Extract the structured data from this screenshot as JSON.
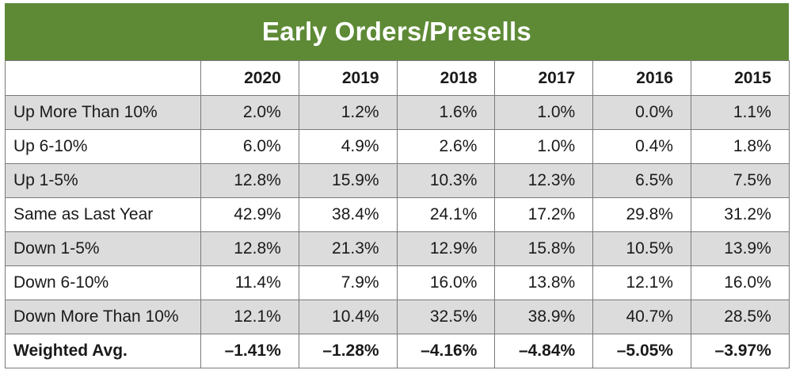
{
  "title": "Early Orders/Presells",
  "chart_data": {
    "type": "table",
    "title": "Early Orders/Presells",
    "columns": [
      "2020",
      "2019",
      "2018",
      "2017",
      "2016",
      "2015"
    ],
    "rows": [
      {
        "label": "Up More Than 10%",
        "values": [
          "2.0%",
          "1.2%",
          "1.6%",
          "1.0%",
          "0.0%",
          "1.1%"
        ]
      },
      {
        "label": "Up 6-10%",
        "values": [
          "6.0%",
          "4.9%",
          "2.6%",
          "1.0%",
          "0.4%",
          "1.8%"
        ]
      },
      {
        "label": "Up 1-5%",
        "values": [
          "12.8%",
          "15.9%",
          "10.3%",
          "12.3%",
          "6.5%",
          "7.5%"
        ]
      },
      {
        "label": "Same as Last Year",
        "values": [
          "42.9%",
          "38.4%",
          "24.1%",
          "17.2%",
          "29.8%",
          "31.2%"
        ]
      },
      {
        "label": "Down 1-5%",
        "values": [
          "12.8%",
          "21.3%",
          "12.9%",
          "15.8%",
          "10.5%",
          "13.9%"
        ]
      },
      {
        "label": "Down 6-10%",
        "values": [
          "11.4%",
          "7.9%",
          "16.0%",
          "13.8%",
          "12.1%",
          "16.0%"
        ]
      },
      {
        "label": "Down More Than 10%",
        "values": [
          "12.1%",
          "10.4%",
          "32.5%",
          "38.9%",
          "40.7%",
          "28.5%"
        ]
      },
      {
        "label": "Weighted Avg.",
        "values": [
          "–1.41%",
          "–1.28%",
          "–4.16%",
          "–4.84%",
          "–5.05%",
          "–3.97%"
        ]
      }
    ]
  },
  "colors": {
    "header_bar": "#5e8a36",
    "shaded_row": "#dcdcdc",
    "border": "#7a7a7a"
  }
}
